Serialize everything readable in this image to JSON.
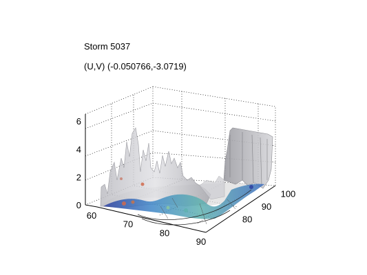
{
  "chart_data": {
    "type": "surface3d",
    "title": "Storm 5037",
    "subtitle_label": "(U,V)",
    "subtitle_values": "(-0.050766,-3.0719)",
    "x_ticks": [
      "60",
      "70",
      "80",
      "90"
    ],
    "y_ticks": [
      "80",
      "90",
      "100"
    ],
    "z_ticks": [
      "0",
      "2",
      "4",
      "6"
    ],
    "xlim": [
      60,
      90
    ],
    "ylim": [
      75,
      103
    ],
    "zlim": [
      0,
      6.5
    ],
    "grid": true,
    "surface_color": "#c8c8cc",
    "base_colormap": [
      "#2c3fa0",
      "#3f86c8",
      "#5fb2b0",
      "#8cc7a0",
      "#d06a4e"
    ]
  }
}
